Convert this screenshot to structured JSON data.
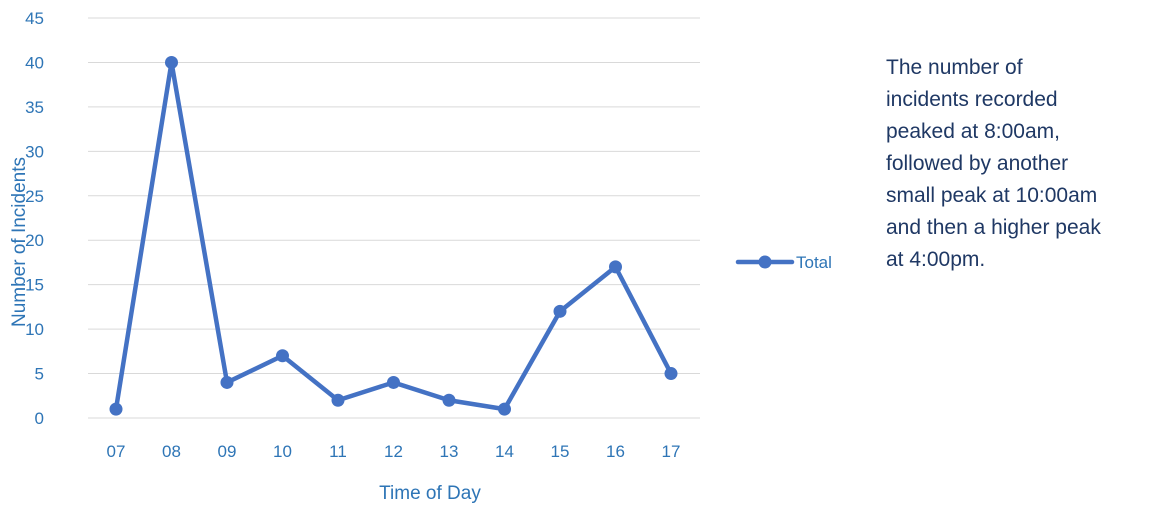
{
  "colors": {
    "series": "#4472c4",
    "axis_text": "#2e75b6",
    "gridline": "#d9d9d9",
    "annotation_text": "#1f3864"
  },
  "chart_data": {
    "type": "line",
    "xlabel": "Time of Day",
    "ylabel": "Number of Incidents",
    "categories": [
      "07",
      "08",
      "09",
      "10",
      "11",
      "12",
      "13",
      "14",
      "15",
      "16",
      "17"
    ],
    "series": [
      {
        "name": "Total",
        "values": [
          1,
          40,
          4,
          7,
          2,
          4,
          2,
          1,
          12,
          17,
          5
        ]
      }
    ],
    "ylim": [
      0,
      45
    ],
    "yticks": [
      0,
      5,
      10,
      15,
      20,
      25,
      30,
      35,
      40,
      45
    ],
    "grid": true,
    "legend": "right",
    "markers": "circle"
  },
  "annotation": {
    "text": "The number of\nincidents recorded\npeaked at 8:00am,\nfollowed by another\nsmall peak at 10:00am\nand then a higher peak\nat 4:00pm."
  }
}
